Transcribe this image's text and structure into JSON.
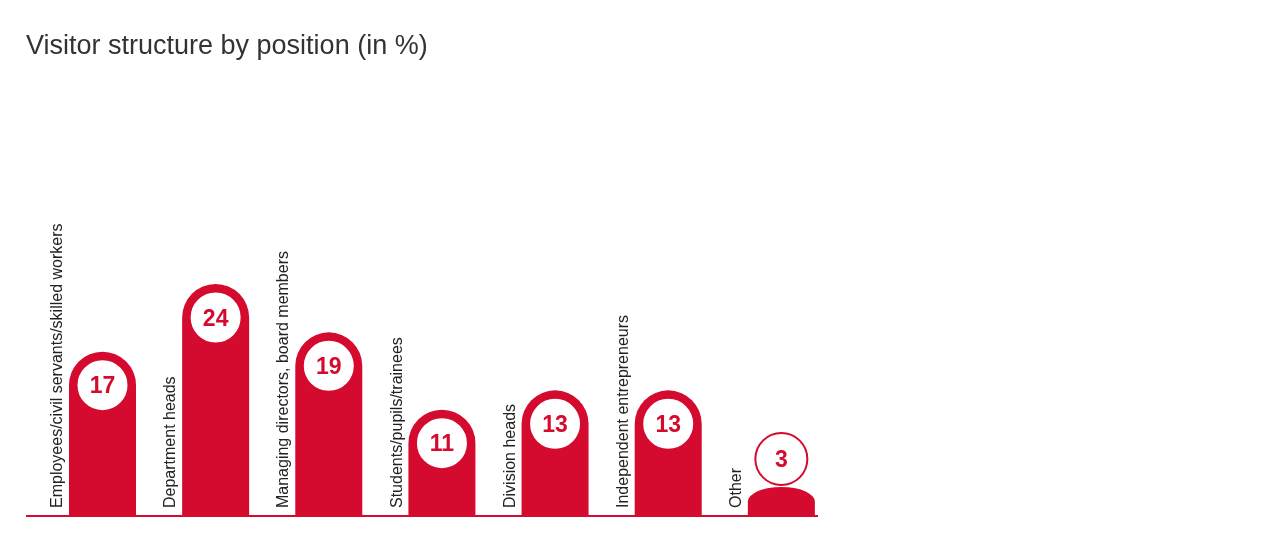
{
  "chart_data": {
    "type": "bar",
    "title": "Visitor structure by position (in %)",
    "categories": [
      "Employees/civil servants/skilled workers",
      "Department heads",
      "Managing directors, board members",
      "Students/pupils/trainees",
      "Division heads",
      "Independent entrepreneurs",
      "Other"
    ],
    "values": [
      17,
      24,
      19,
      11,
      13,
      13,
      3
    ],
    "color": "#d40a2e",
    "data_labels": true
  }
}
